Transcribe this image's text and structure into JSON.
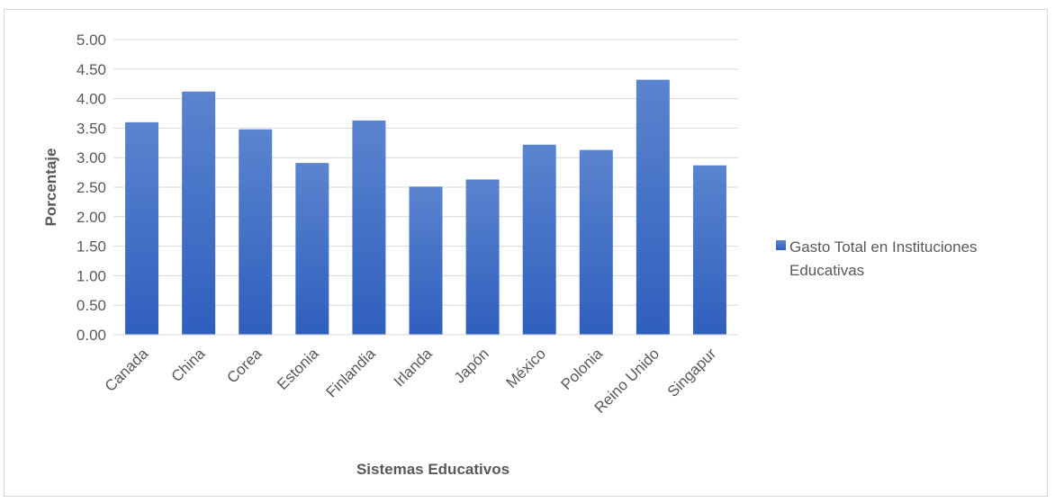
{
  "chart_data": {
    "type": "bar",
    "categories": [
      "Canada",
      "China",
      "Corea",
      "Estonia",
      "Finlandia",
      "Irlanda",
      "Japón",
      "México",
      "Polonia",
      "Reino Unido",
      "Singapur"
    ],
    "series": [
      {
        "name": "Gasto Total en Instituciones Educativas",
        "values": [
          3.6,
          4.12,
          3.48,
          2.91,
          3.63,
          2.51,
          2.63,
          3.22,
          3.13,
          4.32,
          2.87
        ]
      }
    ],
    "y_ticks": [
      "0.00",
      "0.50",
      "1.00",
      "1.50",
      "2.00",
      "2.50",
      "3.00",
      "3.50",
      "4.00",
      "4.50",
      "5.00"
    ],
    "xlabel": "Sistemas Educativos",
    "ylabel": "Porcentaje",
    "ylim": [
      0,
      5
    ],
    "grid": true,
    "legend_position": "right",
    "legend_lines": [
      "Gasto Total en Instituciones",
      "Educativas"
    ],
    "colors": {
      "bar_top": "#5b84cf",
      "bar_bottom": "#2f5fbd",
      "grid": "#d9d9d9",
      "text": "#595959"
    }
  }
}
